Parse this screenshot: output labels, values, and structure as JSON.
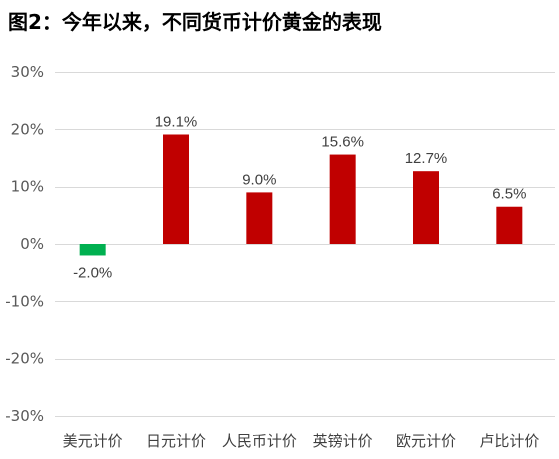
{
  "chart_data": {
    "type": "bar",
    "title": "图2：今年以来，不同货币计价黄金的表现",
    "categories": [
      "美元计价",
      "日元计价",
      "人民币计价",
      "英镑计价",
      "欧元计价",
      "卢比计价"
    ],
    "values": [
      -2.0,
      19.1,
      9.0,
      15.6,
      12.7,
      6.5
    ],
    "value_labels": [
      "-2.0%",
      "19.1%",
      "9.0%",
      "15.6%",
      "12.7%",
      "6.5%"
    ],
    "bar_colors": [
      "#00B050",
      "#C00000",
      "#C00000",
      "#C00000",
      "#C00000",
      "#C00000"
    ],
    "yticks": [
      30,
      20,
      10,
      0,
      -10,
      -20,
      -30
    ],
    "ytick_labels": [
      "30%",
      "20%",
      "10%",
      "0%",
      "-10%",
      "-20%",
      "-30%"
    ],
    "ylim": [
      -30,
      30
    ],
    "grid": true,
    "gridline_color": "#D9D9D9",
    "xlabel": "",
    "ylabel": ""
  }
}
